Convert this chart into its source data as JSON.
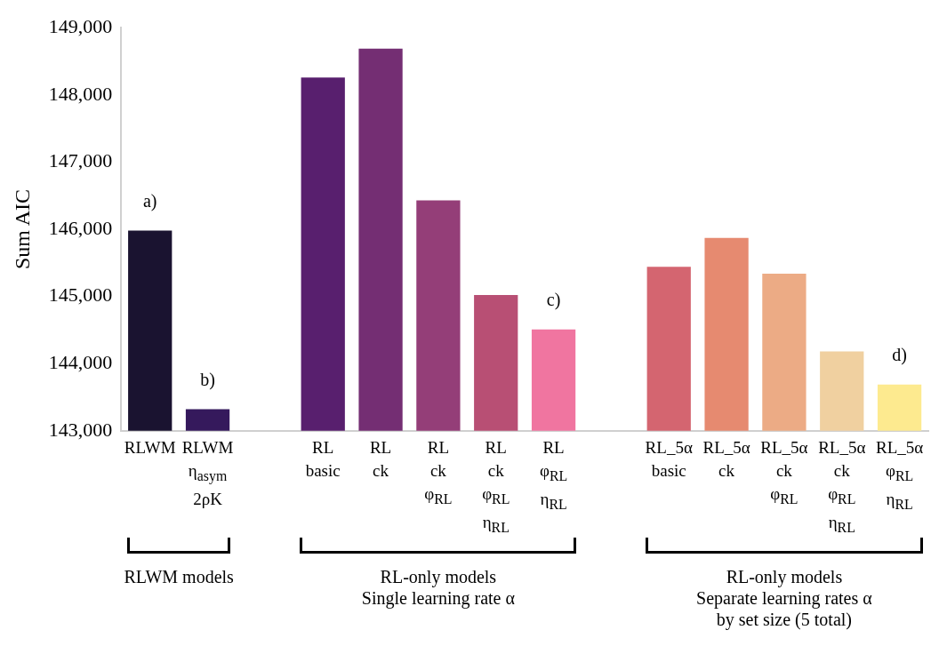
{
  "chart_data": {
    "type": "bar",
    "ylabel": "Sum AIC",
    "categories": [
      "RLWM",
      "RLWM\nη$_{asym}$\n2ρK",
      null,
      "RL\nbasic",
      "RL\nck",
      "RL\nck\nφ$_{RL}$",
      "RL\nck\nφ$_{RL}$\nη$_{RL}$",
      "RL\nφ$_{RL}$\nη$_{RL}$",
      null,
      "RL_5α\nbasic",
      "RL_5α\nck",
      "RL_5α\nck\nφ$_{RL}$",
      "RL_5α\nck\nφ$_{RL}$\nη$_{RL}$",
      "RL_5α\nφ$_{RL}$\nη$_{RL}$"
    ],
    "values": [
      145980,
      143320,
      null,
      148260,
      148690,
      146430,
      145020,
      144510,
      null,
      145440,
      145870,
      145340,
      144180,
      143690
    ],
    "colors": [
      "#1a1330",
      "#35195c",
      null,
      "#581f6e",
      "#742e73",
      "#943e78",
      "#b84f74",
      "#f075a0",
      null,
      "#d46570",
      "#e68a70",
      "#ecab85",
      "#f0d0a0",
      "#fdea8f"
    ],
    "ylim": [
      143000,
      149000
    ],
    "yticks": [
      {
        "value": 143000,
        "label": "143,000"
      },
      {
        "value": 144000,
        "label": "144,000"
      },
      {
        "value": 145000,
        "label": "145,000"
      },
      {
        "value": 146000,
        "label": "146,000"
      },
      {
        "value": 147000,
        "label": "147,000"
      },
      {
        "value": 148000,
        "label": "148,000"
      },
      {
        "value": 149000,
        "label": "149,000"
      }
    ],
    "grid": false,
    "legend": false,
    "annotations": [
      {
        "text": "a)",
        "x": "RLWM",
        "y": 145980
      },
      {
        "text": "b)",
        "x": "RLWM\nη$_{asym}$\n2ρK",
        "y": 143320
      },
      {
        "text": "c)",
        "x": "RL\nφ$_{RL}$\nη$_{RL}$",
        "y": 144510
      },
      {
        "text": "d)",
        "x": "RL_5α\nφ$_{RL}$\nη$_{RL}$",
        "y": 143690
      },
      "RLWM models",
      "RL-only models\nSingle learning rate α",
      "RL-only models\nSeparate learning rates α\nby set size (5 total)"
    ]
  }
}
